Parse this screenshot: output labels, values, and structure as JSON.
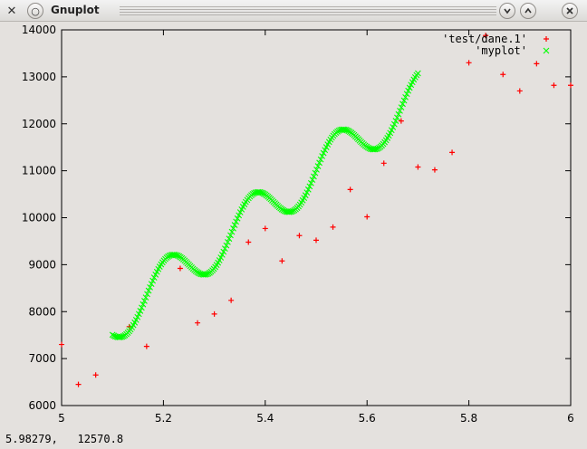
{
  "window": {
    "title": "Gnuplot",
    "app_icon": "gnuplot-x-icon",
    "menu_icon": "window-menu-icon",
    "minimize_icon": "chevron-down-icon",
    "maximize_icon": "chevron-up-icon",
    "close_icon": "close-icon"
  },
  "status": {
    "coords": "5.98279,   12570.8"
  },
  "chart_data": {
    "type": "scatter",
    "title": "",
    "xlabel": "",
    "ylabel": "",
    "xlim": [
      5,
      6
    ],
    "ylim": [
      6000,
      14000
    ],
    "xticks": [
      5,
      5.2,
      5.4,
      5.6,
      5.8,
      6
    ],
    "yticks": [
      6000,
      7000,
      8000,
      9000,
      10000,
      11000,
      12000,
      13000,
      14000
    ],
    "xtick_labels": [
      "5",
      "5.2",
      "5.4",
      "5.6",
      "5.8",
      "6"
    ],
    "ytick_labels": [
      "6000",
      "7000",
      "8000",
      "9000",
      "10000",
      "11000",
      "12000",
      "13000",
      "14000"
    ],
    "grid": false,
    "legend_position": "top-right",
    "series": [
      {
        "name": "'test/dane.1'",
        "marker": "+",
        "color": "#ff0000",
        "x": [
          5.0,
          5.033,
          5.067,
          5.133,
          5.167,
          5.233,
          5.267,
          5.3,
          5.333,
          5.367,
          5.4,
          5.433,
          5.467,
          5.5,
          5.533,
          5.567,
          5.6,
          5.633,
          5.667,
          5.7,
          5.733,
          5.767,
          5.8,
          5.833,
          5.867,
          5.9,
          5.933,
          5.967,
          6.0
        ],
        "y": [
          7300,
          6450,
          6650,
          7680,
          7260,
          8920,
          7760,
          7950,
          8240,
          9480,
          9770,
          9080,
          9620,
          9520,
          9800,
          10600,
          10020,
          11160,
          12060,
          11080,
          11020,
          11390,
          13300,
          13880,
          13050,
          12700,
          13280,
          12820,
          12820
        ]
      },
      {
        "name": "'myplot'",
        "marker": "x",
        "color": "#00ff00",
        "x_range": [
          5.1,
          5.7
        ],
        "function": "7000 + 8000*(x-5) + 500*sin(12*pi*(x-5))"
      }
    ]
  }
}
